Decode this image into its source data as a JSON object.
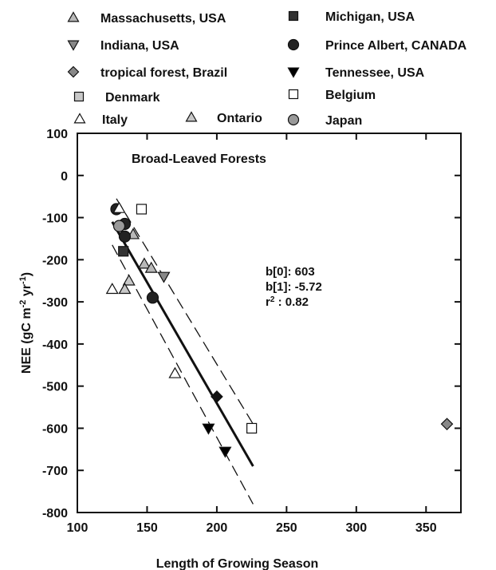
{
  "chart_data": {
    "type": "scatter",
    "title": "Broad-Leaved Forests",
    "xlabel": "Length of Growing Season",
    "ylabel": "NEE (gC m-2 yr-1)",
    "ylabel_parts": {
      "main": "NEE (gC m",
      "exp1": "-2",
      "mid": " yr",
      "exp2": "-1",
      "end": ")"
    },
    "xlim": [
      100,
      375
    ],
    "ylim": [
      -800,
      100
    ],
    "xticks": [
      "100",
      "150",
      "200",
      "250",
      "300",
      "350"
    ],
    "yticks": [
      "100",
      "0",
      "-100",
      "-200",
      "-300",
      "-400",
      "-500",
      "-600",
      "-700",
      "-800"
    ],
    "grid": false,
    "legend_placement": "top",
    "series": [
      {
        "name": "Massachusetts, USA",
        "marker": "triangle-up",
        "fill": "#b8b8b8",
        "points": [
          [
            148,
            -210
          ],
          [
            140,
            -140
          ],
          [
            153,
            -220
          ]
        ]
      },
      {
        "name": "Michigan, USA",
        "marker": "square",
        "fill": "#333333",
        "points": [
          [
            133,
            -180
          ]
        ]
      },
      {
        "name": "Indiana, USA",
        "marker": "triangle-down",
        "fill": "#888888",
        "points": [
          [
            162,
            -240
          ]
        ]
      },
      {
        "name": "Prince Albert, CANADA",
        "marker": "circle",
        "fill": "#222222",
        "points": [
          [
            128,
            -80
          ],
          [
            134,
            -115
          ],
          [
            134,
            -145
          ],
          [
            154,
            -290
          ]
        ]
      },
      {
        "name": "tropical forest, Brazil",
        "marker": "diamond",
        "fill": "#888888",
        "points": [
          [
            365,
            -590
          ]
        ]
      },
      {
        "name": "Tennessee, USA",
        "marker": "triangle-down",
        "fill": "#000000",
        "points": [
          [
            194,
            -600
          ],
          [
            206,
            -655
          ]
        ]
      },
      {
        "name": "Denmark",
        "marker": "square",
        "fill": "#c8c8c8",
        "points": [
          []
        ]
      },
      {
        "name": "Belgium",
        "marker": "square",
        "fill": "#ffffff",
        "points": [
          [
            146,
            -80
          ],
          [
            225,
            -600
          ]
        ]
      },
      {
        "name": "Italy",
        "marker": "triangle-up",
        "fill": "#ffffff",
        "points": [
          [
            130,
            -78
          ],
          [
            125,
            -270
          ],
          [
            170,
            -470
          ]
        ]
      },
      {
        "name": "Ontario",
        "marker": "triangle-up",
        "fill": "#c8c8c8",
        "points": [
          [
            137,
            -250
          ],
          [
            134,
            -270
          ]
        ]
      },
      {
        "name": "Japan",
        "marker": "circle",
        "fill": "#999999",
        "points": [
          [
            130,
            -120
          ]
        ]
      }
    ],
    "extra_points": [
      {
        "marker": "diamond",
        "fill": "#111111",
        "x": 200,
        "y": -525
      }
    ],
    "regression": {
      "b0_label": "b[0]: 603",
      "b1_label": "b[1]: -5.72",
      "r2_label_prefix": "r",
      "r2_label_rest": " :     0.82",
      "fit_line": [
        [
          125,
          -110
        ],
        [
          226,
          -690
        ]
      ],
      "upper_band": [
        [
          128,
          -55
        ],
        [
          226,
          -590
        ]
      ],
      "lower_band": [
        [
          125,
          -165
        ],
        [
          226,
          -780
        ]
      ]
    }
  }
}
